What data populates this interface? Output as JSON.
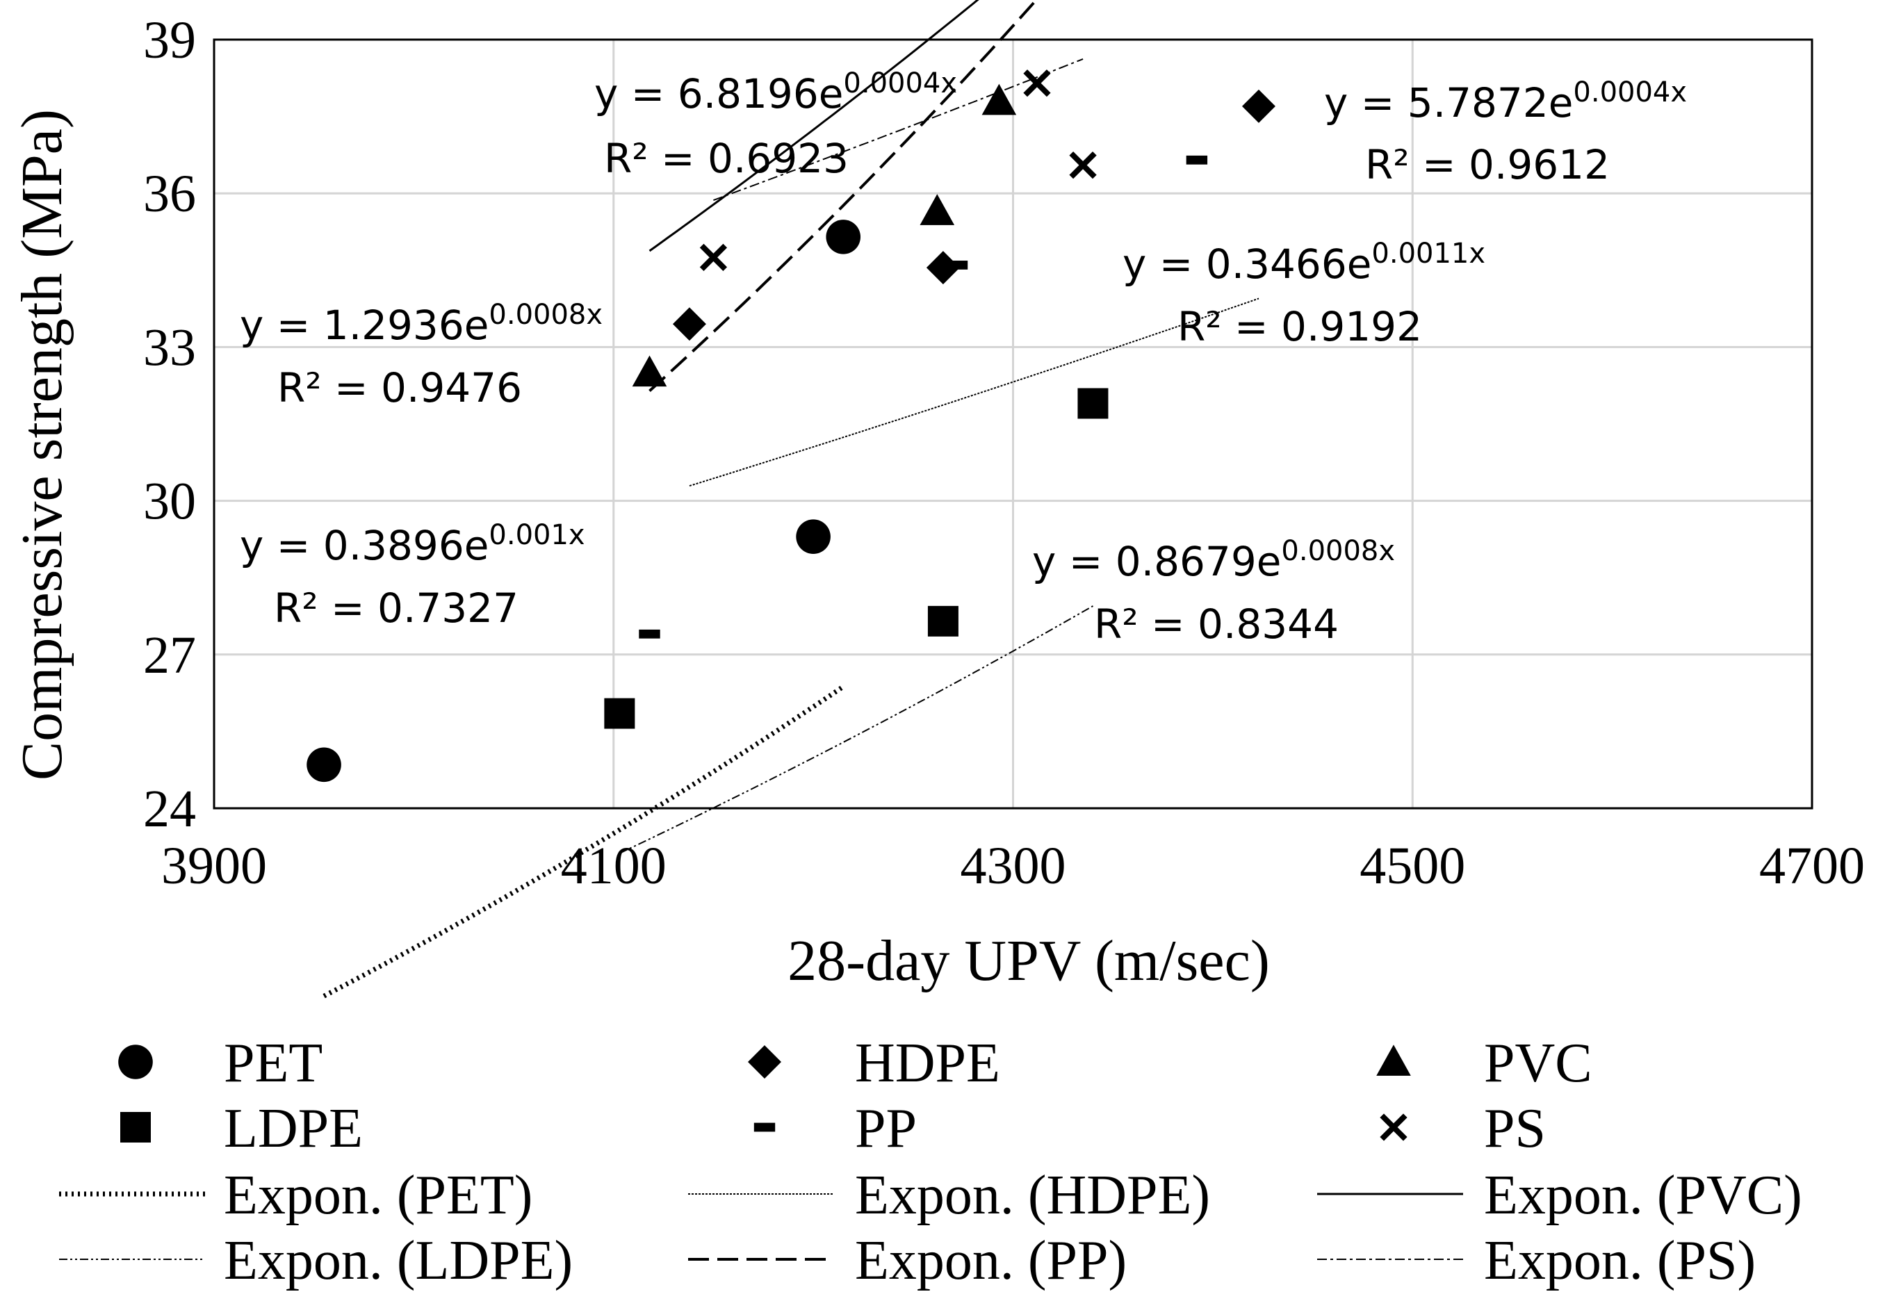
{
  "chart_data": {
    "type": "scatter",
    "xlabel": "28-day UPV (m/sec)",
    "ylabel": "Compressive strength (MPa)",
    "xlim": [
      3900,
      4700
    ],
    "ylim": [
      24,
      39
    ],
    "xticks": [
      3900,
      4100,
      4300,
      4500,
      4700
    ],
    "yticks": [
      24,
      27,
      30,
      33,
      36,
      39
    ],
    "grid": true,
    "legend_position": "bottom",
    "series": [
      {
        "name": "PET",
        "marker": "circle",
        "points": [
          [
            3955,
            24.85
          ],
          [
            4200,
            29.3
          ],
          [
            4215,
            35.15
          ]
        ],
        "trend": {
          "name": "Expon. (PET)",
          "a": 0.3896,
          "b": 0.001,
          "x_from": 3955,
          "x_to": 4215,
          "style": "dotted"
        },
        "equation_base": "y = 0.3896e",
        "equation_exp": "0.001x",
        "r2": "R² = 0.7327"
      },
      {
        "name": "HDPE",
        "marker": "diamond",
        "points": [
          [
            4138,
            33.45
          ],
          [
            4265,
            34.55
          ],
          [
            4423,
            37.7
          ]
        ],
        "trend": {
          "name": "Expon. (HDPE)",
          "a": 5.7872,
          "b": 0.0004,
          "x_from": 4138,
          "x_to": 4423,
          "style": "fine"
        },
        "equation_base": "y = 5.7872e",
        "equation_exp": "0.0004x",
        "r2": "R² = 0.9612"
      },
      {
        "name": "PVC",
        "marker": "triangle",
        "points": [
          [
            4118,
            32.5
          ],
          [
            4262,
            35.65
          ],
          [
            4293,
            37.8
          ]
        ],
        "trend": {
          "name": "Expon. (PVC)",
          "a": 1.2936,
          "b": 0.0008,
          "x_from": 4118,
          "x_to": 4293,
          "style": "solid"
        },
        "equation_base": "y = 1.2936e",
        "equation_exp": "0.0008x",
        "r2": "R² = 0.9476"
      },
      {
        "name": "LDPE",
        "marker": "square",
        "points": [
          [
            4103,
            25.85
          ],
          [
            4265,
            27.65
          ],
          [
            4340,
            31.9
          ]
        ],
        "trend": {
          "name": "Expon. (LDPE)",
          "a": 0.8679,
          "b": 0.0008,
          "x_from": 4103,
          "x_to": 4340,
          "style": "dashdotdot"
        },
        "equation_base": "y = 0.8679e",
        "equation_exp": "0.0008x",
        "r2": "R² = 0.8344"
      },
      {
        "name": "PP",
        "marker": "dash",
        "points": [
          [
            4118,
            27.4
          ],
          [
            4272,
            34.6
          ],
          [
            4392,
            36.65
          ]
        ],
        "trend": {
          "name": "Expon. (PP)",
          "a": 0.3466,
          "b": 0.0011,
          "x_from": 4118,
          "x_to": 4392,
          "style": "dashed"
        },
        "equation_base": "y = 0.3466e",
        "equation_exp": "0.0011x",
        "r2": "R² = 0.9192"
      },
      {
        "name": "PS",
        "marker": "x",
        "points": [
          [
            4150,
            34.75
          ],
          [
            4312,
            38.15
          ],
          [
            4335,
            36.55
          ]
        ],
        "trend": {
          "name": "Expon. (PS)",
          "a": 6.8196,
          "b": 0.0004,
          "x_from": 4150,
          "x_to": 4335,
          "style": "dashdot"
        },
        "equation_base": "y = 6.8196e",
        "equation_exp": "0.0004x",
        "r2": "R² = 0.6923"
      }
    ]
  }
}
